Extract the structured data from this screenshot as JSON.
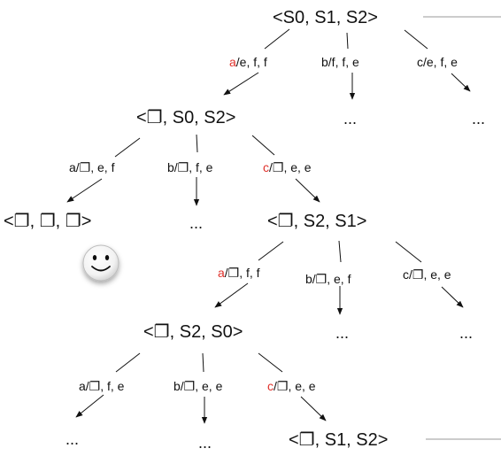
{
  "blank": "❐",
  "ellipsis": "...",
  "states": {
    "root": "<S0, S1, S2>",
    "l1": "<❐, S0, S2>",
    "goal": "<❐, ❐, ❐>",
    "l2": "<❐, S2, S1>",
    "l3": "<❐, S2, S0>",
    "l4": "<❐, S1, S2>"
  },
  "labels": {
    "root_a": {
      "key": "a",
      "rest": "/e, f, f"
    },
    "root_b": {
      "key": "b",
      "rest": "/f, f, e"
    },
    "root_c": {
      "key": "c",
      "rest": "/e, f, e"
    },
    "l1_a": {
      "key": "a",
      "rest": "/❐, e, f"
    },
    "l1_b": {
      "key": "b",
      "rest": "/❐, f, e"
    },
    "l1_c": {
      "key": "c",
      "rest": "/❐, e, e"
    },
    "l2_a": {
      "key": "a",
      "rest": "/❐, f, f"
    },
    "l2_b": {
      "key": "b",
      "rest": "/❐, e, f"
    },
    "l2_c": {
      "key": "c",
      "rest": "/❐, e, e"
    },
    "l3_a": {
      "key": "a",
      "rest": "/❐, f, e"
    },
    "l3_b": {
      "key": "b",
      "rest": "/❐, e, e"
    },
    "l3_c": {
      "key": "c",
      "rest": "/❐, e, e"
    }
  },
  "colors": {
    "highlight": "#e0302a",
    "text": "#111111",
    "rule": "#999999"
  },
  "icons": {
    "goal_marker": "smiley-face-icon"
  }
}
